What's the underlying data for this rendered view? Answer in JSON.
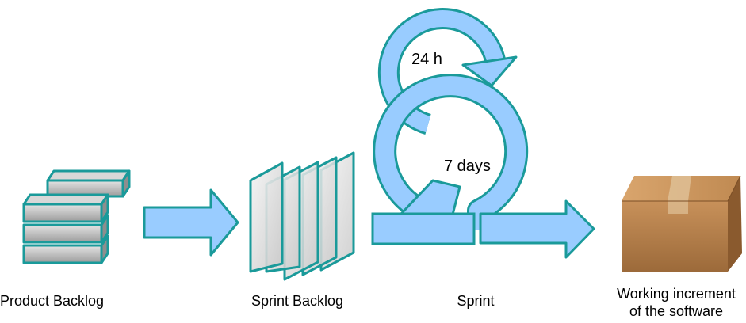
{
  "labels": {
    "product_backlog": "Product Backlog",
    "sprint_backlog": "Sprint Backlog",
    "sprint": "Sprint",
    "increment_line1": "Working increment",
    "increment_line2": "of the software",
    "daily_cycle": "24 h",
    "sprint_cycle": "7 days"
  },
  "colors": {
    "arrow_fill": "#99ccff",
    "arrow_stroke": "#1a9a9a",
    "block_fill": "#b8b8b8",
    "block_stroke": "#1a9a9a",
    "sheet_stroke": "#1a9a9a",
    "box_fill": "#b07a45"
  },
  "icons": {
    "product_backlog": "stacked-blocks-icon",
    "sprint_backlog": "stacked-sheets-icon",
    "increment": "cardboard-box-icon"
  }
}
